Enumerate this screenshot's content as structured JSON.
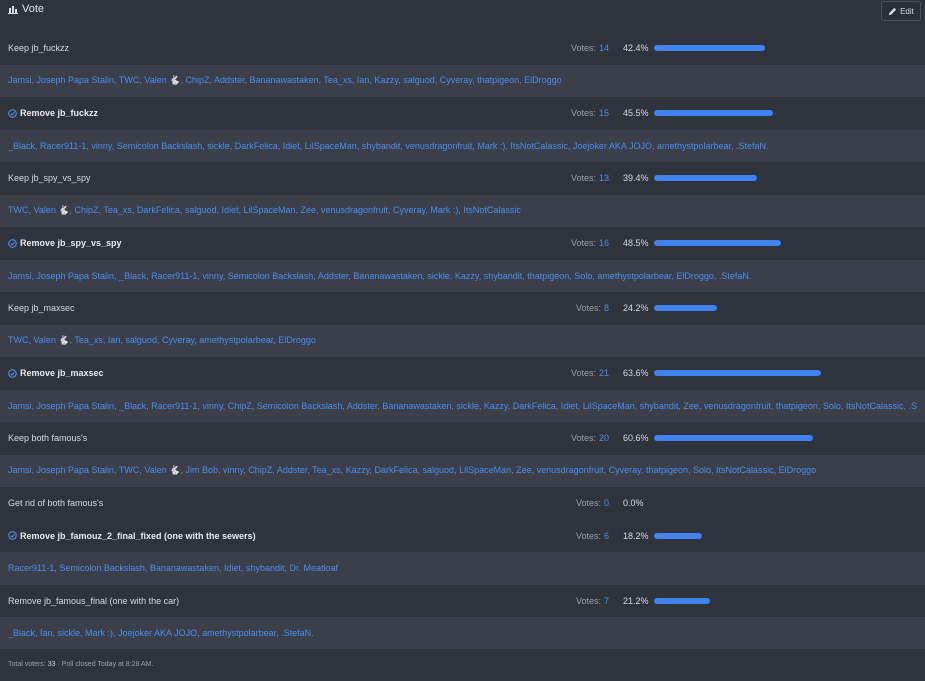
{
  "header": {
    "title": "Vote",
    "edit_label": "Edit"
  },
  "accent": "#3f82f0",
  "options": [
    {
      "label": "Keep jb_fuckzz",
      "checked": false,
      "votes_label": "Votes:",
      "votes": "14",
      "percent": "42.4%",
      "fraction": 0.424,
      "voters": "Jamsi, Joseph Papa Stalin, TWC, Valen 🐇, ChipZ, Addster, Bananawastaken, Tea_xs, Ian, Kazzy, salguod, Cyveray, thatpigeon, ElDroggo"
    },
    {
      "label": "Remove jb_fuckzz",
      "checked": true,
      "votes_label": "Votes:",
      "votes": "15",
      "percent": "45.5%",
      "fraction": 0.455,
      "voters": "_Black, Racer911-1, vinny, Semicolon Backslash, sickle, DarkFelica, Idiet, LilSpaceMan, shybandit, venusdragonfruit, Mark :), ItsNotCalassic, Joejoker AKA JOJO, amethystpolarbear, .StefaN."
    },
    {
      "label": "Keep jb_spy_vs_spy",
      "checked": false,
      "votes_label": "Votes:",
      "votes": "13",
      "percent": "39.4%",
      "fraction": 0.394,
      "voters": "TWC, Valen 🐇, ChipZ, Tea_xs, DarkFelica, salguod, Idiet, LilSpaceMan, Zee, venusdragonfruit, Cyveray, Mark :), ItsNotCalassic"
    },
    {
      "label": "Remove jb_spy_vs_spy",
      "checked": true,
      "votes_label": "Votes:",
      "votes": "16",
      "percent": "48.5%",
      "fraction": 0.485,
      "voters": "Jamsi, Joseph Papa Stalin, _Black, Racer911-1, vinny, Semicolon Backslash, Addster, Bananawastaken, sickle, Kazzy, shybandit, thatpigeon, Solo, amethystpolarbear, ElDroggo, .StefaN."
    },
    {
      "label": "Keep jb_maxsec",
      "checked": false,
      "votes_label": "Votes:",
      "votes": "8",
      "percent": "24.2%",
      "fraction": 0.242,
      "voters": "TWC, Valen 🐇, Tea_xs, Ian, salguod, Cyveray, amethystpolarbear, ElDroggo"
    },
    {
      "label": "Remove jb_maxsec",
      "checked": true,
      "votes_label": "Votes:",
      "votes": "21",
      "percent": "63.6%",
      "fraction": 0.636,
      "voters": "Jamsi, Joseph Papa Stalin, _Black, Racer911-1, vinny, ChipZ, Semicolon Backslash, Addster, Bananawastaken, sickle, Kazzy, DarkFelica, Idiet, LilSpaceMan, shybandit, Zee, venusdragonfruit, thatpigeon, Solo, ItsNotCalassic, .StefaN."
    },
    {
      "label": "Keep both famous's",
      "checked": false,
      "votes_label": "Votes:",
      "votes": "20",
      "percent": "60.6%",
      "fraction": 0.606,
      "voters": "Jamsi, Joseph Papa Stalin, TWC, Valen 🐇, Jim Bob, vinny, ChipZ, Addster, Tea_xs, Kazzy, DarkFelica, salguod, LilSpaceMan, Zee, venusdragonfruit, Cyveray, thatpigeon, Solo, ItsNotCalassic, ElDroggo"
    },
    {
      "label": "Get rid of both famous's",
      "checked": false,
      "votes_label": "Votes:",
      "votes": "0",
      "percent": "0.0%",
      "fraction": 0,
      "voters": ""
    },
    {
      "label": "Remove jb_famouz_2_final_fixed (one with the sewers)",
      "checked": true,
      "votes_label": "Votes:",
      "votes": "6",
      "percent": "18.2%",
      "fraction": 0.182,
      "voters": "Racer911-1, Semicolon Backslash, Bananawastaken, Idiet, shybandit, Dr. Meatloaf"
    },
    {
      "label": "Remove jb_famous_final (one with the car)",
      "checked": false,
      "votes_label": "Votes:",
      "votes": "7",
      "percent": "21.2%",
      "fraction": 0.212,
      "voters": "_Black, Ian, sickle, Mark :), Joejoker AKA JOJO, amethystpolarbear, .StefaN."
    }
  ],
  "footer": {
    "total_label": "Total voters:",
    "total": "33",
    "closed": "· Poll closed Today at 8:28 AM."
  }
}
